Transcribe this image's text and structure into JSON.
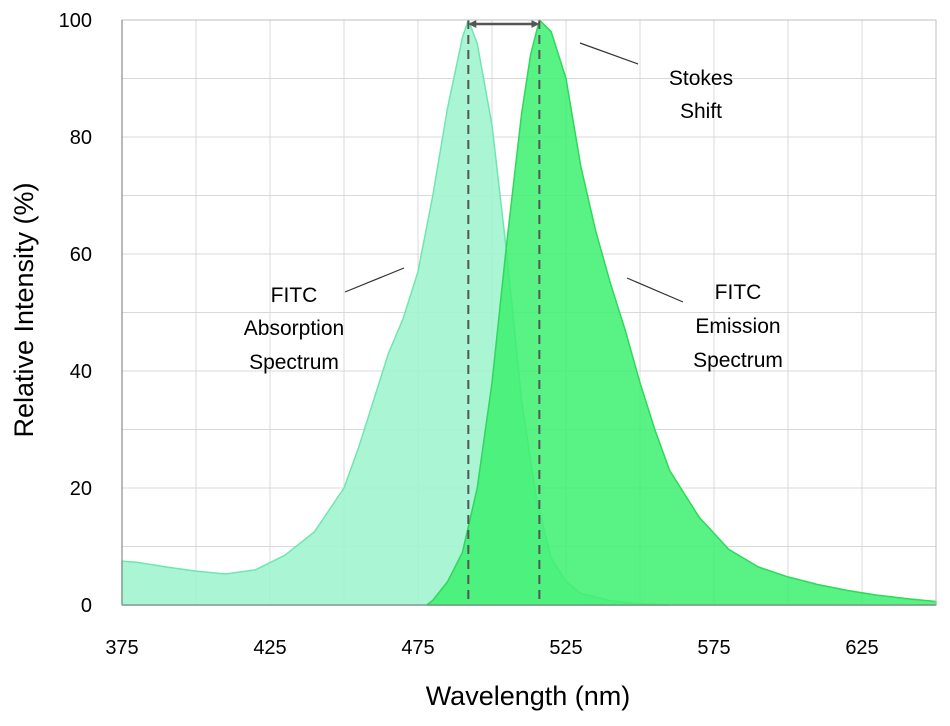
{
  "chart_data": {
    "type": "area",
    "xlabel": "Wavelength (nm)",
    "ylabel": "Relative Intensity (%)",
    "xlim": [
      375,
      650
    ],
    "ylim": [
      0,
      100
    ],
    "xticks": [
      375,
      425,
      475,
      525,
      575,
      625
    ],
    "yticks": [
      0,
      20,
      40,
      60,
      80,
      100
    ],
    "grid": true,
    "series": [
      {
        "name": "FITC Absorption Spectrum",
        "color": "#a3f5d0",
        "stroke": "#6fe6b2",
        "x": [
          375,
          380,
          390,
          400,
          410,
          420,
          430,
          440,
          450,
          455,
          460,
          465,
          470,
          475,
          480,
          485,
          490,
          492,
          495,
          500,
          505,
          510,
          515,
          520,
          525,
          530,
          540,
          550,
          560
        ],
        "y": [
          7.5,
          7.3,
          6.5,
          5.8,
          5.3,
          6.0,
          8.5,
          12.5,
          20.0,
          27.0,
          35.0,
          43.0,
          49.0,
          57.0,
          70.0,
          85.0,
          97.0,
          100.0,
          96.0,
          82.0,
          60.0,
          35.0,
          18.0,
          8.0,
          4.0,
          2.0,
          0.7,
          0.2,
          0.0
        ]
      },
      {
        "name": "FITC Emission Spectrum",
        "color": "#3cf06e",
        "stroke": "#2fd85c",
        "x": [
          478,
          480,
          485,
          490,
          495,
          500,
          505,
          510,
          513,
          516,
          520,
          525,
          530,
          535,
          540,
          545,
          550,
          555,
          560,
          570,
          580,
          590,
          600,
          610,
          620,
          630,
          640,
          650
        ],
        "y": [
          0.0,
          0.8,
          4.0,
          9.0,
          20.0,
          38.0,
          62.0,
          84.0,
          94.0,
          100.0,
          98.0,
          90.0,
          75.0,
          64.0,
          55.0,
          47.0,
          38.0,
          30.0,
          23.0,
          15.0,
          9.5,
          6.5,
          4.8,
          3.5,
          2.5,
          1.7,
          1.1,
          0.6
        ]
      }
    ],
    "markers": {
      "absorption_peak_x": 492,
      "emission_peak_x": 516
    },
    "annotations": {
      "stokes": [
        "Stokes",
        "Shift"
      ],
      "absorption": [
        "FITC",
        "Absorption",
        "Spectrum"
      ],
      "emission": [
        "FITC",
        "Emission",
        "Spectrum"
      ]
    }
  }
}
